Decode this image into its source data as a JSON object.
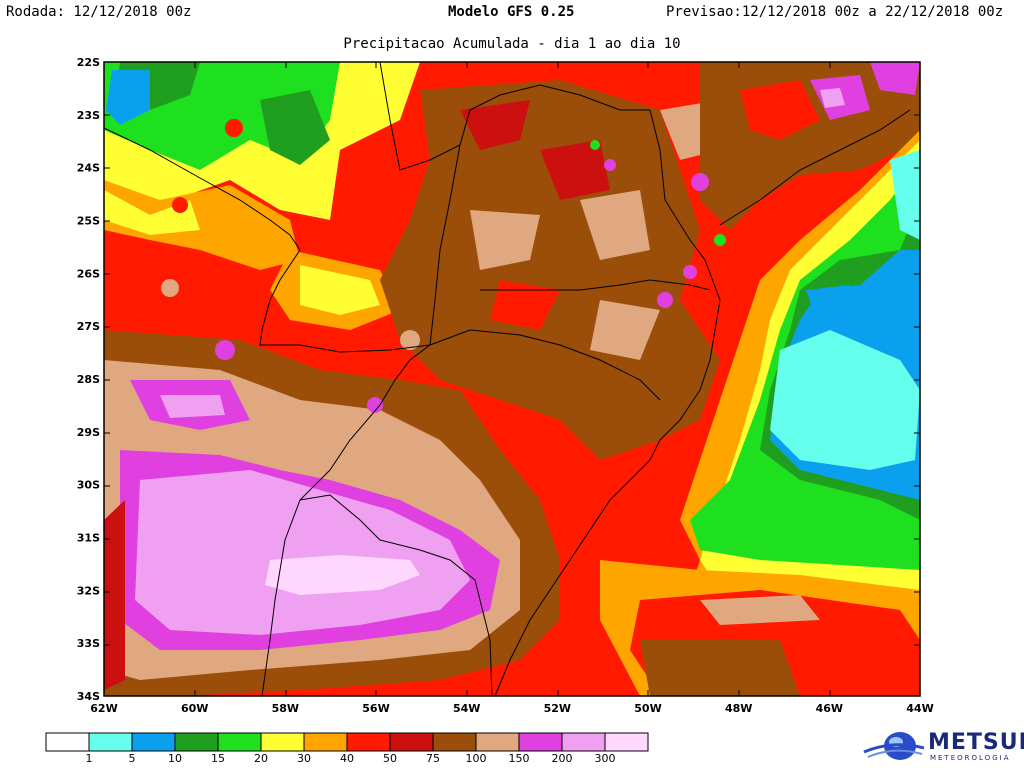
{
  "header": {
    "run_label": "Rodada: 12/12/2018 00z",
    "model_label": "Modelo GFS 0.25",
    "forecast_label": "Previsao:12/12/2018 00z a 22/12/2018 00z",
    "subtitle": "Precipitacao Acumulada - dia 1 ao dia 10"
  },
  "axes": {
    "lat_labels": [
      "22S",
      "23S",
      "24S",
      "25S",
      "26S",
      "27S",
      "28S",
      "29S",
      "30S",
      "31S",
      "32S",
      "33S",
      "34S"
    ],
    "lon_labels": [
      "62W",
      "60W",
      "58W",
      "56W",
      "54W",
      "52W",
      "50W",
      "48W",
      "46W",
      "44W"
    ]
  },
  "legend": {
    "labels": [
      "1",
      "5",
      "10",
      "15",
      "20",
      "30",
      "40",
      "50",
      "75",
      "100",
      "150",
      "200",
      "300"
    ],
    "colors": [
      "#ffffff",
      "#66ffee",
      "#0aa0ee",
      "#1f9e1f",
      "#1ee01e",
      "#ffff33",
      "#ffa500",
      "#ff1a00",
      "#cc0f0f",
      "#9a4e0a",
      "#e0a880",
      "#e040e0",
      "#f0a0f0",
      "#ffd8ff"
    ]
  },
  "branding": {
    "logo_text": "METSUL",
    "logo_subtext": "METEOROLOGIA"
  }
}
